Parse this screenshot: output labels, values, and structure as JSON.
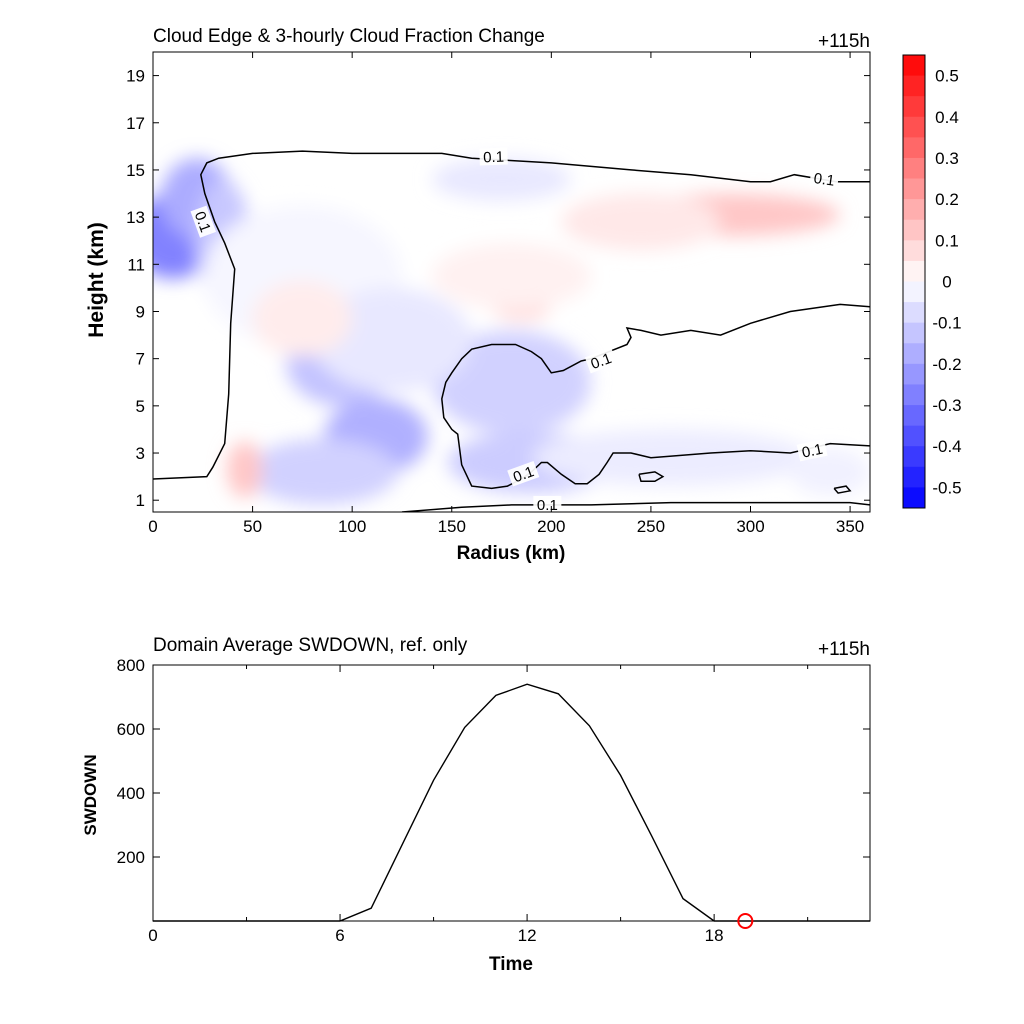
{
  "chart_data": [
    {
      "type": "heatmap",
      "title": "Cloud Edge & 3-hourly Cloud Fraction Change",
      "time_label": "+115h",
      "xlabel": "Radius (km)",
      "ylabel": "Height (km)",
      "xlim": [
        0,
        360
      ],
      "ylim": [
        0.5,
        20
      ],
      "xticks": [
        0,
        50,
        100,
        150,
        200,
        250,
        300,
        350
      ],
      "yticks": [
        1,
        3,
        5,
        7,
        9,
        11,
        13,
        15,
        17,
        19
      ],
      "colorbar": {
        "range": [
          -0.55,
          0.55
        ],
        "step": 0.05,
        "labels": [
          "0.5",
          "0.4",
          "0.3",
          "0.2",
          "0.1",
          "0",
          "-0.1",
          "-0.2",
          "-0.3",
          "-0.4",
          "-0.5"
        ],
        "label_values": [
          0.5,
          0.4,
          0.3,
          0.2,
          0.1,
          0,
          -0.1,
          -0.2,
          -0.3,
          -0.4,
          -0.5
        ],
        "max_color": "#ff0000",
        "min_color": "#0000ff",
        "mid_color": "#ffffff"
      },
      "anomalies": [
        {
          "x": 10,
          "y": 12.2,
          "value": -0.27,
          "rx": 22,
          "ry": 1.8
        },
        {
          "x": 22,
          "y": 13.8,
          "value": -0.18,
          "rx": 18,
          "ry": 1.7
        },
        {
          "x": 35,
          "y": 12.0,
          "value": -0.12,
          "rx": 14,
          "ry": 2.6
        },
        {
          "x": 75,
          "y": 10.5,
          "value": -0.02,
          "rx": 50,
          "ry": 3.0
        },
        {
          "x": 95,
          "y": 6.8,
          "value": -0.13,
          "rx": 28,
          "ry": 1.8
        },
        {
          "x": 112,
          "y": 3.7,
          "value": -0.17,
          "rx": 26,
          "ry": 1.6
        },
        {
          "x": 85,
          "y": 2.2,
          "value": -0.1,
          "rx": 38,
          "ry": 1.4
        },
        {
          "x": 180,
          "y": 6.0,
          "value": -0.1,
          "rx": 40,
          "ry": 2.2
        },
        {
          "x": 190,
          "y": 2.6,
          "value": -0.11,
          "rx": 42,
          "ry": 1.3
        },
        {
          "x": 260,
          "y": 2.8,
          "value": -0.04,
          "rx": 70,
          "ry": 1.2
        },
        {
          "x": 175,
          "y": 14.6,
          "value": -0.05,
          "rx": 35,
          "ry": 0.9
        },
        {
          "x": 120,
          "y": 7.8,
          "value": -0.05,
          "rx": 40,
          "ry": 2.2
        },
        {
          "x": 46,
          "y": 2.3,
          "value": 0.12,
          "rx": 9,
          "ry": 1.2
        },
        {
          "x": 290,
          "y": 13.1,
          "value": 0.12,
          "rx": 55,
          "ry": 0.9
        },
        {
          "x": 245,
          "y": 12.8,
          "value": 0.05,
          "rx": 40,
          "ry": 1.2
        },
        {
          "x": 185,
          "y": 9.1,
          "value": 0.08,
          "rx": 14,
          "ry": 0.5
        },
        {
          "x": 75,
          "y": 8.7,
          "value": 0.04,
          "rx": 25,
          "ry": 1.6
        },
        {
          "x": 180,
          "y": 10.5,
          "value": 0.03,
          "rx": 40,
          "ry": 1.4
        },
        {
          "x": 340,
          "y": 2.2,
          "value": -0.03,
          "rx": 20,
          "ry": 1.0
        }
      ],
      "contours": [
        {
          "label": "0.1",
          "points": [
            [
              0,
              1.9
            ],
            [
              27,
              2.0
            ],
            [
              30,
              2.4
            ],
            [
              36,
              3.4
            ],
            [
              38,
              5.5
            ],
            [
              39,
              8.5
            ],
            [
              41,
              10.8
            ],
            [
              36,
              11.9
            ],
            [
              31,
              12.8
            ],
            [
              26,
              14.0
            ],
            [
              24,
              14.8
            ],
            [
              27,
              15.3
            ],
            [
              33,
              15.5
            ],
            [
              50,
              15.7
            ],
            [
              75,
              15.8
            ],
            [
              100,
              15.7
            ],
            [
              145,
              15.7
            ],
            [
              160,
              15.5
            ],
            [
              200,
              15.3
            ],
            [
              240,
              15.0
            ],
            [
              270,
              14.8
            ],
            [
              300,
              14.5
            ],
            [
              310,
              14.5
            ],
            [
              322,
              14.8
            ],
            [
              343,
              14.5
            ],
            [
              360,
              14.5
            ]
          ]
        },
        {
          "label": "0.1",
          "points": [
            [
              360,
              9.2
            ],
            [
              345,
              9.3
            ],
            [
              320,
              9.0
            ],
            [
              300,
              8.5
            ],
            [
              285,
              8.0
            ],
            [
              270,
              8.2
            ],
            [
              255,
              8.0
            ],
            [
              245,
              8.2
            ],
            [
              238,
              8.3
            ],
            [
              240,
              7.9
            ],
            [
              238,
              7.6
            ],
            [
              220,
              7.0
            ],
            [
              215,
              6.9
            ],
            [
              206,
              6.5
            ],
            [
              200,
              6.4
            ],
            [
              195,
              7.0
            ],
            [
              190,
              7.3
            ],
            [
              182,
              7.6
            ],
            [
              170,
              7.6
            ],
            [
              160,
              7.4
            ],
            [
              155,
              7.0
            ],
            [
              150,
              6.4
            ],
            [
              147,
              6.0
            ],
            [
              145,
              5.3
            ],
            [
              146,
              4.5
            ],
            [
              150,
              4.0
            ],
            [
              153,
              3.8
            ],
            [
              155,
              2.5
            ],
            [
              160,
              1.6
            ],
            [
              170,
              1.5
            ],
            [
              178,
              1.6
            ],
            [
              185,
              1.9
            ],
            [
              190,
              2.2
            ],
            [
              195,
              2.6
            ],
            [
              198,
              2.6
            ],
            [
              205,
              2.1
            ],
            [
              212,
              1.7
            ],
            [
              218,
              1.7
            ],
            [
              224,
              2.1
            ],
            [
              228,
              2.6
            ],
            [
              231,
              3.0
            ],
            [
              240,
              3.0
            ],
            [
              250,
              2.8
            ],
            [
              265,
              2.9
            ],
            [
              280,
              3.0
            ],
            [
              300,
              3.1
            ],
            [
              320,
              3.0
            ],
            [
              340,
              3.4
            ],
            [
              360,
              3.3
            ]
          ]
        },
        {
          "label": "0.1",
          "points": [
            [
              125,
              0.5
            ],
            [
              155,
              0.7
            ],
            [
              180,
              0.8
            ],
            [
              220,
              0.8
            ],
            [
              260,
              0.9
            ],
            [
              300,
              0.9
            ],
            [
              350,
              0.9
            ],
            [
              360,
              0.8
            ]
          ]
        },
        {
          "label": "",
          "points": [
            [
              244,
              2.1
            ],
            [
              252,
              2.2
            ],
            [
              256,
              2.0
            ],
            [
              252,
              1.8
            ],
            [
              245,
              1.8
            ],
            [
              244,
              2.1
            ]
          ]
        },
        {
          "label": "",
          "points": [
            [
              342,
              1.5
            ],
            [
              348,
              1.6
            ],
            [
              350,
              1.4
            ],
            [
              344,
              1.3
            ],
            [
              342,
              1.5
            ]
          ]
        }
      ],
      "contour_labels": [
        {
          "text": "0.1",
          "x": 171,
          "y": 15.55,
          "angle": -2
        },
        {
          "text": "0.1",
          "x": 337,
          "y": 14.6,
          "angle": 8
        },
        {
          "text": "0.1",
          "x": 25,
          "y": 12.8,
          "angle": 70
        },
        {
          "text": "0.1",
          "x": 225,
          "y": 6.9,
          "angle": -20
        },
        {
          "text": "0.1",
          "x": 186,
          "y": 2.1,
          "angle": -20
        },
        {
          "text": "0.1",
          "x": 331,
          "y": 3.1,
          "angle": -12
        },
        {
          "text": "0.1",
          "x": 198,
          "y": 0.8,
          "angle": 0
        }
      ]
    },
    {
      "type": "line",
      "title": "Domain Average SWDOWN, ref. only",
      "time_label": "+115h",
      "xlabel": "Time",
      "ylabel": "SWDOWN",
      "xlim": [
        0,
        23
      ],
      "ylim": [
        0,
        800
      ],
      "xticks": [
        0,
        6,
        12,
        18
      ],
      "xminor_ticks": [
        3,
        9,
        15,
        21
      ],
      "yticks": [
        200,
        400,
        600,
        800
      ],
      "series": [
        {
          "color": "#000000",
          "x": [
            0,
            1,
            2,
            3,
            4,
            5,
            6,
            7,
            8,
            9,
            10,
            11,
            12,
            13,
            14,
            15,
            16,
            17,
            18,
            19,
            20,
            21,
            22,
            23
          ],
          "values": [
            0,
            0,
            0,
            0,
            0,
            0,
            0,
            40,
            240,
            440,
            605,
            705,
            740,
            710,
            610,
            455,
            265,
            70,
            0,
            0,
            0,
            0,
            0,
            0
          ]
        }
      ],
      "marker": {
        "x": 19,
        "y": 0,
        "color": "#ff0000"
      }
    }
  ]
}
